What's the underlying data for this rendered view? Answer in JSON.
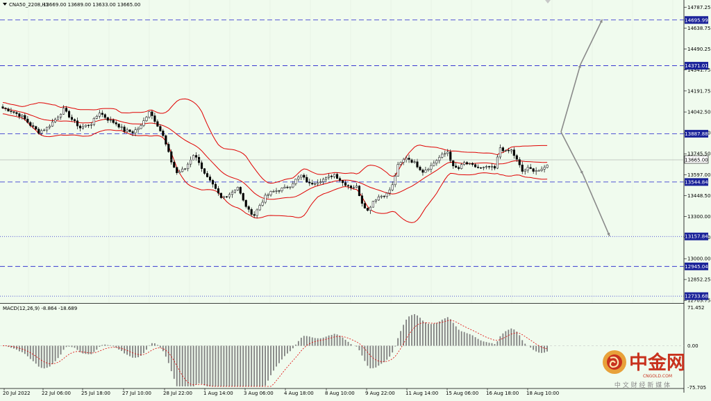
{
  "header": {
    "symbol": "CNA50_2208,H1",
    "ohlc": "13669.00 13689.00 13633.00 13665.00"
  },
  "macd": {
    "label": "MACD(12,26,9) -8.864 -18.689",
    "ticks": [
      "71.452",
      "0.00",
      "-75.705"
    ]
  },
  "watermark": {
    "brand": "中金网",
    "domain": "CNGOLD.COM",
    "slogan": "中 文 财 经 新 媒 体"
  },
  "chart_data": {
    "type": "candlestick",
    "instrument": "CNA50_2208",
    "timeframe": "H1",
    "last_price": 13665.0,
    "ylim": [
      12680,
      14800
    ],
    "y_ticks": [
      14787.25,
      14638.75,
      14490.25,
      14341.75,
      14191.75,
      14042.5,
      13894.0,
      13745.5,
      13597.0,
      13448.5,
      13300.0,
      13151.5,
      13000.0,
      12852.25,
      12703.75
    ],
    "x_ticks": [
      "20 Jul 2022",
      "22 Jul 06:00",
      "25 Jul 18:00",
      "27 Jul 10:00",
      "28 Jul 22:00",
      "1 Aug 14:00",
      "3 Aug 06:00",
      "4 Aug 18:00",
      "8 Aug 10:00",
      "9 Aug 22:00",
      "11 Aug 14:00",
      "15 Aug 06:00",
      "16 Aug 18:00",
      "18 Aug 10:00"
    ],
    "levels": [
      {
        "value": 14695.99,
        "style": "dashed"
      },
      {
        "value": 14371.01,
        "style": "dashed"
      },
      {
        "value": 13887.88,
        "style": "dashed"
      },
      {
        "value": 13544.84,
        "style": "dashed"
      },
      {
        "value": 13157.84,
        "style": "dotted"
      },
      {
        "value": 12945.04,
        "style": "dashed"
      },
      {
        "value": 12733.68,
        "style": "dotted"
      }
    ],
    "price_path": [
      [
        0,
        14070
      ],
      [
        3,
        14050
      ],
      [
        7,
        14010
      ],
      [
        10,
        13950
      ],
      [
        13,
        13900
      ],
      [
        16,
        13930
      ],
      [
        19,
        13990
      ],
      [
        22,
        14060
      ],
      [
        25,
        13990
      ],
      [
        28,
        13930
      ],
      [
        32,
        13960
      ],
      [
        35,
        14040
      ],
      [
        38,
        13990
      ],
      [
        41,
        13960
      ],
      [
        44,
        13910
      ],
      [
        47,
        13900
      ],
      [
        50,
        13940
      ],
      [
        53,
        14050
      ],
      [
        56,
        13950
      ],
      [
        58,
        13870
      ],
      [
        61,
        13690
      ],
      [
        63,
        13610
      ],
      [
        66,
        13640
      ],
      [
        69,
        13740
      ],
      [
        71,
        13690
      ],
      [
        73,
        13600
      ],
      [
        76,
        13520
      ],
      [
        79,
        13430
      ],
      [
        82,
        13460
      ],
      [
        85,
        13510
      ],
      [
        87,
        13410
      ],
      [
        89,
        13340
      ],
      [
        91,
        13310
      ],
      [
        93,
        13380
      ],
      [
        95,
        13440
      ],
      [
        97,
        13470
      ],
      [
        100,
        13490
      ],
      [
        102,
        13500
      ],
      [
        104,
        13520
      ],
      [
        106,
        13560
      ],
      [
        108,
        13590
      ],
      [
        111,
        13530
      ],
      [
        114,
        13550
      ],
      [
        117,
        13570
      ],
      [
        120,
        13600
      ],
      [
        123,
        13540
      ],
      [
        126,
        13510
      ],
      [
        128,
        13510
      ],
      [
        130,
        13400
      ],
      [
        132,
        13340
      ],
      [
        134,
        13410
      ],
      [
        136,
        13440
      ],
      [
        139,
        13460
      ],
      [
        141,
        13520
      ],
      [
        143,
        13660
      ],
      [
        146,
        13720
      ],
      [
        149,
        13680
      ],
      [
        152,
        13620
      ],
      [
        155,
        13660
      ],
      [
        158,
        13720
      ],
      [
        161,
        13760
      ],
      [
        163,
        13650
      ],
      [
        165,
        13640
      ],
      [
        167,
        13680
      ],
      [
        170,
        13660
      ],
      [
        173,
        13640
      ],
      [
        176,
        13650
      ],
      [
        178,
        13640
      ],
      [
        180,
        13790
      ],
      [
        182,
        13760
      ],
      [
        184,
        13770
      ],
      [
        186,
        13700
      ],
      [
        188,
        13620
      ],
      [
        190,
        13640
      ],
      [
        192,
        13630
      ],
      [
        195,
        13625
      ],
      [
        197,
        13665
      ]
    ],
    "forecast_paths": [
      [
        [
          13900,
          0
        ],
        [
          14380,
          0.4
        ],
        [
          14700,
          0.85
        ]
      ],
      [
        [
          13900,
          0
        ],
        [
          13600,
          0.45
        ],
        [
          13160,
          1
        ]
      ]
    ],
    "macd_series": {
      "name": "MACD(12,26,9)",
      "values": [
        -8.864
      ],
      "signal": [
        -18.689
      ],
      "ylim": [
        -75.705,
        71.452
      ]
    }
  },
  "colors": {
    "background": "#f0fbee",
    "candle": "#000000",
    "bands": "#e00000",
    "levels": "#1c1ccc",
    "forecast": "#8a8a8a",
    "macd_hist": "#808080",
    "macd_signal": "#e00000",
    "label_box": "#1a2299"
  }
}
